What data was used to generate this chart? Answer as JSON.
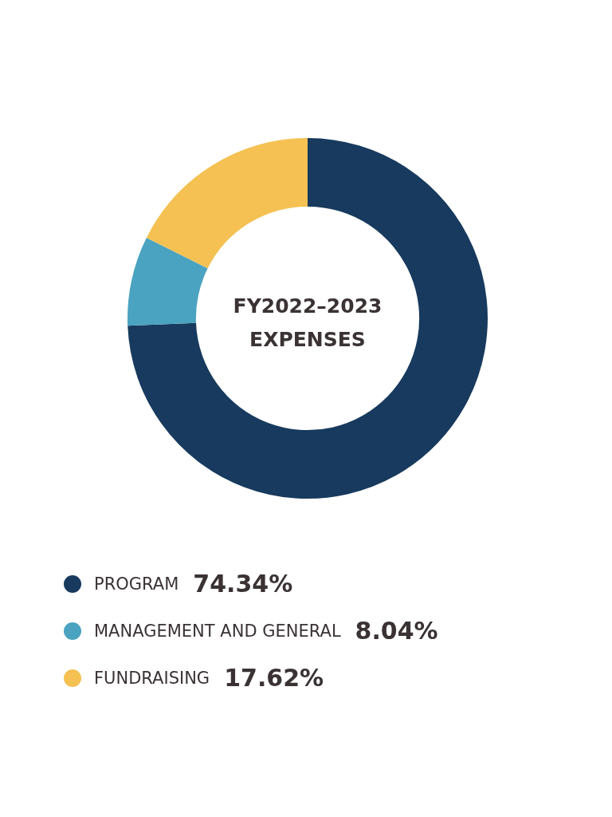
{
  "chart_data": {
    "type": "donut",
    "title": "FY2022–2023 EXPENSES",
    "categories": [
      "PROGRAM",
      "MANAGEMENT AND GENERAL",
      "FUNDRAISING"
    ],
    "values": [
      74.34,
      8.04,
      17.62
    ],
    "colors": [
      "#173a5e",
      "#4aa3c0",
      "#f4c152"
    ],
    "value_labels": [
      "74.34%",
      "8.04%",
      "17.62%"
    ],
    "legend": "bottom"
  }
}
